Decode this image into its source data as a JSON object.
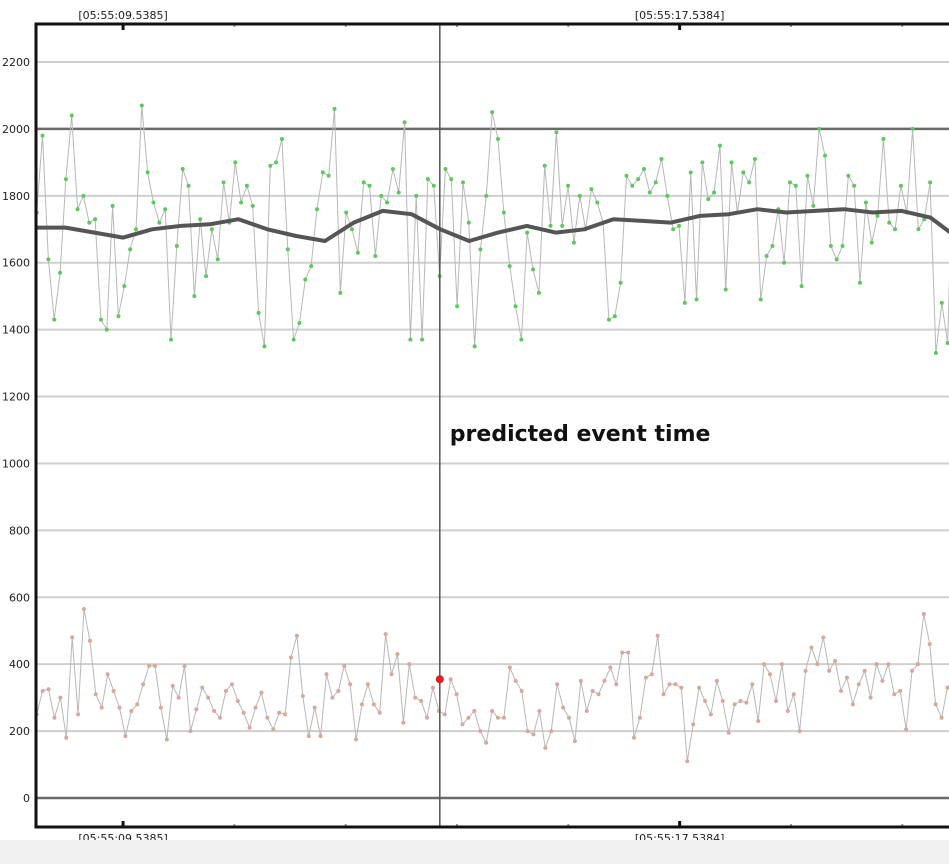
{
  "chart_data": {
    "type": "scatter",
    "title": "",
    "xlabel": "",
    "ylabel": "",
    "x_units": "seconds after 05:55:00",
    "xlim": [
      8.287,
      21.568
    ],
    "ylim": [
      -90,
      2314
    ],
    "yticks": [
      0,
      200,
      400,
      600,
      800,
      1000,
      1200,
      1400,
      1600,
      1800,
      2000,
      2200
    ],
    "ytick_labels": [
      "0",
      "200",
      "400",
      "600",
      "800",
      "1000",
      "1200",
      "1400",
      "1600",
      "1800",
      "2000",
      "2200"
    ],
    "emphasized_gridlines": [
      0,
      2000
    ],
    "grid": true,
    "xticks_major": [
      9.5385,
      17.5384
    ],
    "xtick_labels": [
      "[05:55:09.5385]",
      "[05:55:17.5384]"
    ],
    "xtick_minor_step": 1.6,
    "event": {
      "x": 14.091,
      "label": "predicted event time",
      "marker_value": 355,
      "marker_color": "#e02020"
    },
    "series": [
      {
        "name": "upper signal",
        "color": "#5ec85e",
        "line_color": "#b8b8b8",
        "values": [
          1750,
          1980,
          1610,
          1430,
          1570,
          1850,
          2040,
          1760,
          1800,
          1720,
          1730,
          1430,
          1400,
          1770,
          1440,
          1530,
          1640,
          1700,
          2070,
          1870,
          1780,
          1720,
          1760,
          1370,
          1650,
          1880,
          1830,
          1500,
          1730,
          1560,
          1700,
          1610,
          1840,
          1720,
          1900,
          1780,
          1830,
          1770,
          1450,
          1350,
          1890,
          1900,
          1970,
          1640,
          1370,
          1420,
          1550,
          1590,
          1760,
          1870,
          1860,
          2060,
          1510,
          1750,
          1700,
          1630,
          1840,
          1830,
          1620,
          1800,
          1780,
          1880,
          1810,
          2020,
          1370,
          1800,
          1370,
          1850,
          1830,
          1560,
          1880,
          1850,
          1470,
          1840,
          1720,
          1350,
          1640,
          1800,
          2050,
          1970,
          1750,
          1590,
          1470,
          1370,
          1690,
          1580,
          1510,
          1890,
          1710,
          1990,
          1710,
          1830,
          1660,
          1800,
          1700,
          1820,
          1780,
          1720,
          1430,
          1440,
          1540,
          1860,
          1830,
          1850,
          1880,
          1810,
          1840,
          1910,
          1800,
          1700,
          1710,
          1480,
          1870,
          1490,
          1900,
          1790,
          1810,
          1950,
          1520,
          1900,
          1750,
          1870,
          1840,
          1910,
          1490,
          1620,
          1650,
          1760,
          1600,
          1840,
          1830,
          1530,
          1860,
          1770,
          2000,
          1920,
          1650,
          1610,
          1650,
          1860,
          1830,
          1540,
          1780,
          1660,
          1740,
          1970,
          1720,
          1700,
          1830,
          1750,
          2000,
          1700,
          1730,
          1840,
          1330,
          1480,
          1360,
          1970,
          1720
        ]
      },
      {
        "name": "lower signal",
        "color": "#d8a898",
        "line_color": "#b8b8b8",
        "values": [
          250,
          320,
          325,
          240,
          300,
          180,
          480,
          250,
          565,
          470,
          310,
          270,
          370,
          320,
          270,
          185,
          260,
          280,
          340,
          395,
          395,
          270,
          175,
          335,
          300,
          395,
          200,
          265,
          330,
          300,
          260,
          240,
          320,
          340,
          290,
          255,
          210,
          270,
          315,
          240,
          205,
          255,
          250,
          420,
          485,
          305,
          185,
          270,
          185,
          370,
          300,
          320,
          395,
          340,
          175,
          280,
          340,
          280,
          255,
          490,
          370,
          430,
          225,
          400,
          300,
          290,
          240,
          330,
          260,
          250,
          355,
          310,
          220,
          240,
          260,
          200,
          165,
          260,
          240,
          240,
          390,
          350,
          320,
          200,
          190,
          260,
          150,
          200,
          340,
          270,
          240,
          170,
          350,
          260,
          320,
          310,
          350,
          390,
          340,
          435,
          435,
          180,
          240,
          360,
          370,
          485,
          310,
          340,
          340,
          330,
          110,
          220,
          330,
          290,
          250,
          350,
          290,
          195,
          280,
          290,
          285,
          340,
          230,
          400,
          370,
          290,
          400,
          260,
          310,
          200,
          380,
          450,
          400,
          480,
          380,
          410,
          320,
          360,
          280,
          340,
          380,
          300,
          400,
          350,
          400,
          310,
          320,
          205,
          380,
          400,
          550,
          460,
          280,
          240,
          330,
          350,
          290
        ]
      },
      {
        "name": "smoothed",
        "color": "#555555",
        "type": "line",
        "values": [
          1705,
          1705,
          1690,
          1675,
          1700,
          1710,
          1715,
          1730,
          1700,
          1680,
          1665,
          1720,
          1755,
          1745,
          1700,
          1665,
          1690,
          1710,
          1690,
          1700,
          1730,
          1725,
          1720,
          1740,
          1745,
          1760,
          1750,
          1755,
          1760,
          1750,
          1755,
          1735,
          1670
        ]
      }
    ]
  }
}
